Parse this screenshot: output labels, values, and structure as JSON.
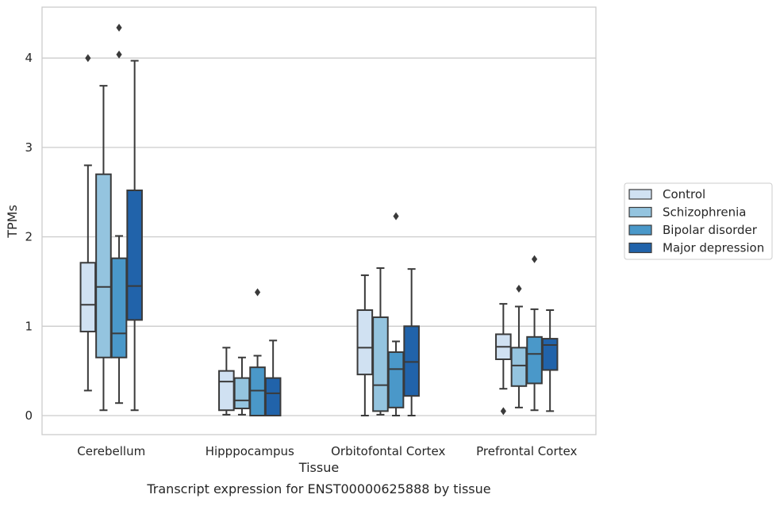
{
  "caption": "Transcript expression for ENST00000625888 by tissue",
  "chart_data": {
    "type": "boxplot",
    "title": "",
    "xlabel": "Tissue",
    "ylabel": "TPMs",
    "ylim": [
      -0.2,
      4.55
    ],
    "yticks": [
      0,
      1,
      2,
      3,
      4
    ],
    "grid": "horizontal",
    "legend_position": "right",
    "categories": [
      "Cerebellum",
      "Hipppocampus",
      "Orbitofontal Cortex",
      "Prefrontal Cortex"
    ],
    "series": [
      {
        "name": "Control",
        "color": "#d0e1f2",
        "boxes": [
          {
            "whislo": 0.28,
            "q1": 0.94,
            "med": 1.24,
            "q3": 1.71,
            "whishi": 2.8,
            "fliers": [
              4.0
            ]
          },
          {
            "whislo": 0.01,
            "q1": 0.06,
            "med": 0.38,
            "q3": 0.5,
            "whishi": 0.76,
            "fliers": []
          },
          {
            "whislo": 0.0,
            "q1": 0.46,
            "med": 0.76,
            "q3": 1.18,
            "whishi": 1.57,
            "fliers": []
          },
          {
            "whislo": 0.3,
            "q1": 0.63,
            "med": 0.77,
            "q3": 0.91,
            "whishi": 1.25,
            "fliers": [
              0.05
            ]
          }
        ]
      },
      {
        "name": "Schizophrenia",
        "color": "#94c4df",
        "boxes": [
          {
            "whislo": 0.06,
            "q1": 0.65,
            "med": 1.44,
            "q3": 2.7,
            "whishi": 3.69,
            "fliers": []
          },
          {
            "whislo": 0.01,
            "q1": 0.08,
            "med": 0.17,
            "q3": 0.42,
            "whishi": 0.65,
            "fliers": []
          },
          {
            "whislo": 0.01,
            "q1": 0.05,
            "med": 0.34,
            "q3": 1.1,
            "whishi": 1.65,
            "fliers": []
          },
          {
            "whislo": 0.09,
            "q1": 0.33,
            "med": 0.56,
            "q3": 0.76,
            "whishi": 1.22,
            "fliers": [
              1.42
            ]
          }
        ]
      },
      {
        "name": "Bipolar disorder",
        "color": "#4a98c9",
        "boxes": [
          {
            "whislo": 0.14,
            "q1": 0.65,
            "med": 0.92,
            "q3": 1.76,
            "whishi": 2.01,
            "fliers": [
              4.04,
              4.34
            ]
          },
          {
            "whislo": 0.0,
            "q1": 0.0,
            "med": 0.28,
            "q3": 0.54,
            "whishi": 0.67,
            "fliers": [
              1.38
            ]
          },
          {
            "whislo": 0.0,
            "q1": 0.09,
            "med": 0.52,
            "q3": 0.71,
            "whishi": 0.83,
            "fliers": [
              2.23
            ]
          },
          {
            "whislo": 0.06,
            "q1": 0.36,
            "med": 0.69,
            "q3": 0.88,
            "whishi": 1.19,
            "fliers": [
              1.75
            ]
          }
        ]
      },
      {
        "name": "Major depression",
        "color": "#2163aa",
        "boxes": [
          {
            "whislo": 0.06,
            "q1": 1.07,
            "med": 1.45,
            "q3": 2.52,
            "whishi": 3.97,
            "fliers": []
          },
          {
            "whislo": 0.0,
            "q1": 0.0,
            "med": 0.25,
            "q3": 0.42,
            "whishi": 0.84,
            "fliers": []
          },
          {
            "whislo": 0.0,
            "q1": 0.22,
            "med": 0.6,
            "q3": 1.0,
            "whishi": 1.64,
            "fliers": []
          },
          {
            "whislo": 0.05,
            "q1": 0.51,
            "med": 0.79,
            "q3": 0.86,
            "whishi": 1.18,
            "fliers": []
          }
        ]
      }
    ]
  }
}
